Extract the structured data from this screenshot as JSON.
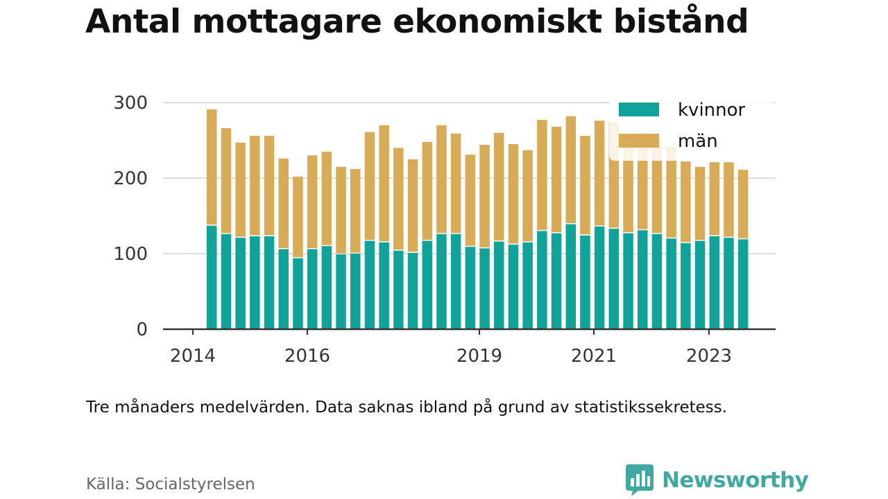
{
  "title": "Antal mottagare ekonomiskt bistånd",
  "note": "Tre månaders medelvärden. Data saknas ibland på grund av statistikssekretess.",
  "source": "Källa: Socialstyrelsen",
  "brand": {
    "name": "Newsworthy",
    "color": "#3fa8a0",
    "logo_icon": "bar-chart-speech-bubble-icon"
  },
  "colors": {
    "kvinnor": "#0fa39a",
    "man": "#d8ab57",
    "axis": "#333333",
    "grid": "#dddddd"
  },
  "chart_data": {
    "type": "bar",
    "stacked": true,
    "ylim": [
      0,
      300
    ],
    "yticks": [
      0,
      100,
      200,
      300
    ],
    "grid": true,
    "legend_position": "top-right",
    "x_tick_labels": [
      "2014",
      "2016",
      "2019",
      "2021",
      "2023"
    ],
    "series": [
      {
        "name": "kvinnor",
        "values": [
          137,
          126,
          121,
          123,
          123,
          106,
          94,
          106,
          110,
          99,
          100,
          117,
          115,
          104,
          101,
          117,
          126,
          126,
          109,
          107,
          116,
          112,
          115,
          130,
          127,
          139,
          124,
          136,
          133,
          127,
          131,
          126,
          120,
          114,
          117,
          123,
          121,
          119
        ]
      },
      {
        "name": "män",
        "values": [
          154,
          140,
          126,
          133,
          133,
          120,
          108,
          124,
          125,
          116,
          112,
          144,
          155,
          136,
          124,
          131,
          144,
          133,
          122,
          137,
          144,
          133,
          122,
          147,
          141,
          143,
          132,
          140,
          141,
          132,
          130,
          127,
          122,
          108,
          98,
          98,
          100,
          92
        ]
      }
    ]
  }
}
